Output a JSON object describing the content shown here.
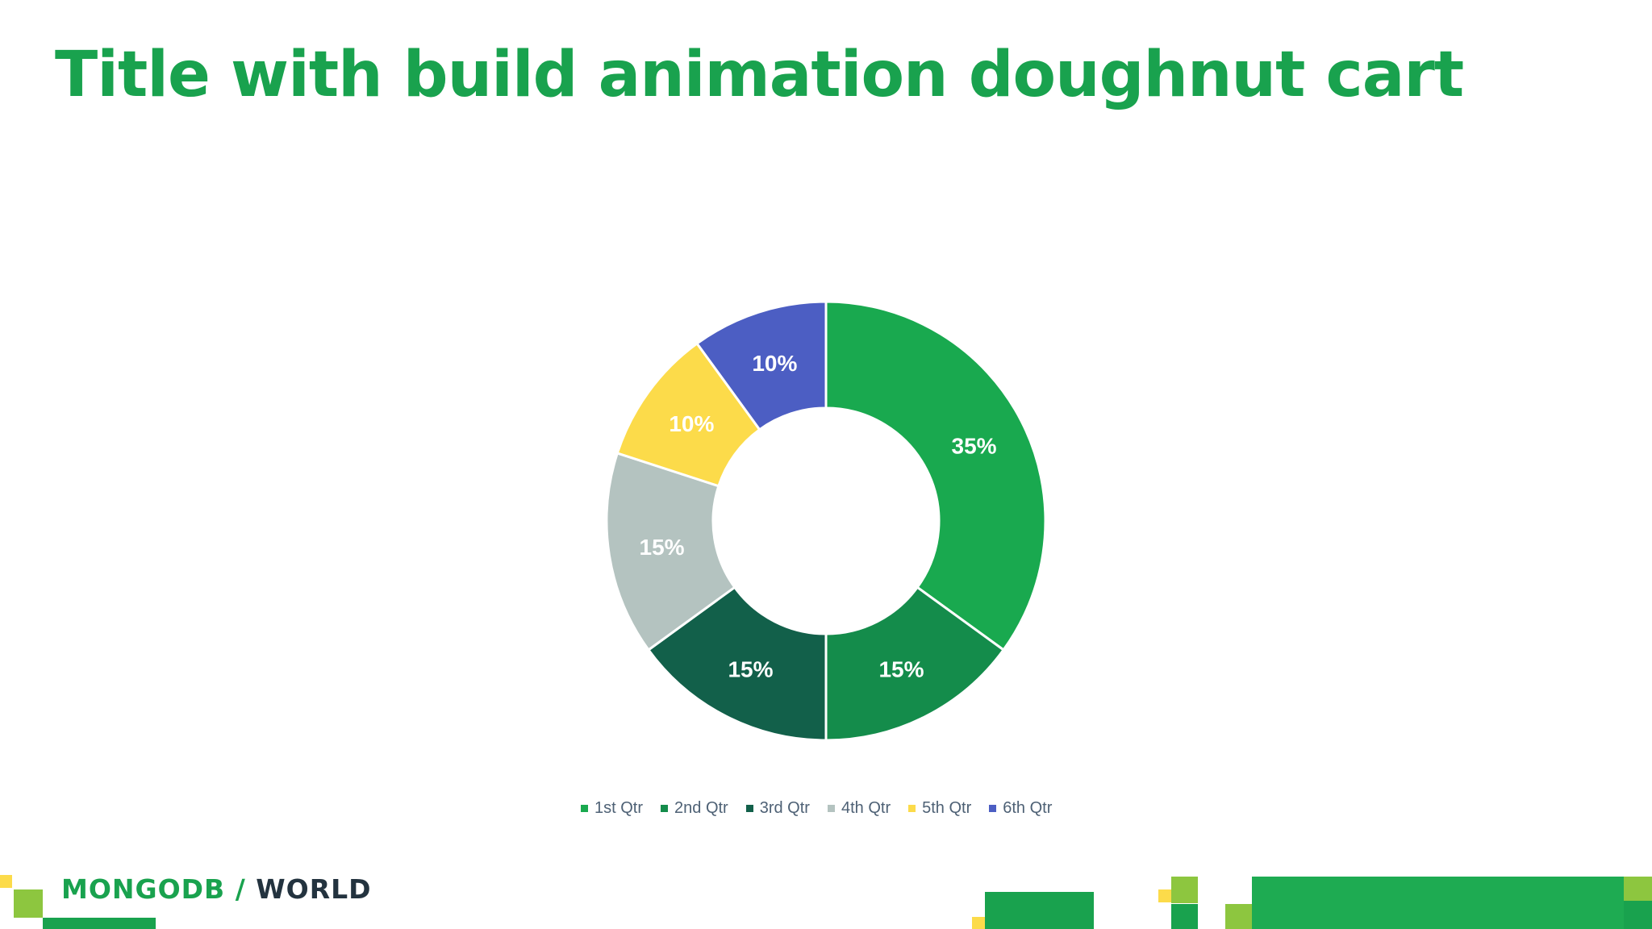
{
  "slide": {
    "title": "Title with build animation doughnut cart"
  },
  "logo": {
    "brand": "MONGODB",
    "separator": " / ",
    "event": "WORLD"
  },
  "colors": {
    "title": "#19a24e",
    "text_on_slice": "#ffffff",
    "legend_text": "#4e6175"
  },
  "chart_data": {
    "type": "doughnut",
    "title": "",
    "categories": [
      "1st Qtr",
      "2nd Qtr",
      "3rd Qtr",
      "4th Qtr",
      "5th Qtr",
      "6th Qtr"
    ],
    "values": [
      35,
      15,
      15,
      15,
      10,
      10
    ],
    "labels": [
      "35%",
      "15%",
      "15%",
      "15%",
      "10%",
      "10%"
    ],
    "colors": [
      "#19a94f",
      "#148c4b",
      "#12604a",
      "#b4c3c0",
      "#fcdb4a",
      "#4c5ec3"
    ],
    "legend_position": "bottom",
    "start_angle_deg": 0,
    "direction": "clockwise"
  }
}
